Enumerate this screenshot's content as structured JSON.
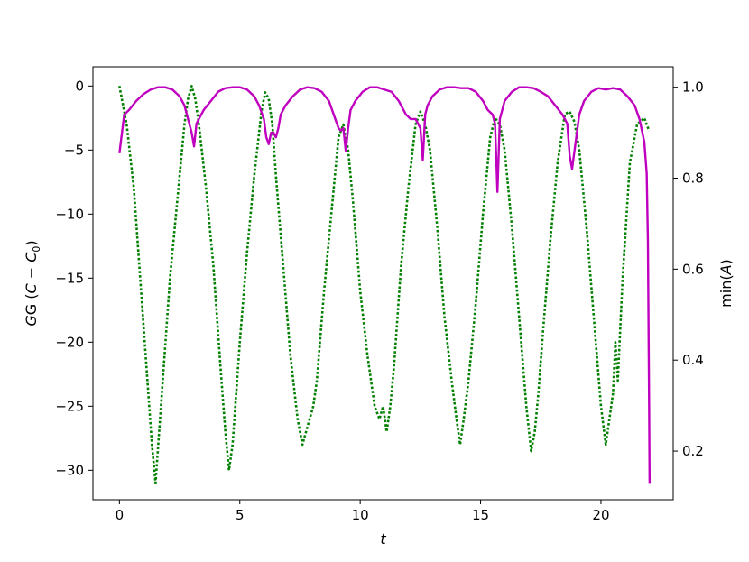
{
  "chart_data": {
    "type": "line",
    "xlabel": "t",
    "ylabel_left": "G (C − C₀)",
    "ylabel_left_parts": {
      "pre": "G (",
      "c1": "C",
      "mid": " − ",
      "c2": "C",
      "sub": "0",
      "post": ")"
    },
    "ylabel_right": "min(A)",
    "ylabel_right_parts": {
      "pre": "min(",
      "var": "A",
      "post": ")"
    },
    "xlim": [
      -1.1,
      23.0
    ],
    "ylim_left": [
      -32.3,
      1.5
    ],
    "ylim_right": [
      0.093,
      1.045
    ],
    "x_ticks": [
      0,
      5,
      10,
      15,
      20
    ],
    "y_ticks_left": [
      0,
      -5,
      -10,
      -15,
      -20,
      -25,
      -30
    ],
    "y_ticks_right": [
      1.0,
      0.8,
      0.6,
      0.4,
      0.2
    ],
    "grid": false,
    "series": [
      {
        "axis": "left",
        "style": "dotted",
        "color": "#008000",
        "x": [
          0,
          0.3,
          0.6,
          0.9,
          1.2,
          1.35,
          1.5,
          1.65,
          1.8,
          2.1,
          2.4,
          2.7,
          2.85,
          3.0,
          3.15,
          3.3,
          3.6,
          3.9,
          4.2,
          4.4,
          4.55,
          4.7,
          4.85,
          5.0,
          5.3,
          5.6,
          5.9,
          6.05,
          6.2,
          6.35,
          6.5,
          6.8,
          7.1,
          7.4,
          7.6,
          7.75,
          7.9,
          8.05,
          8.2,
          8.5,
          8.8,
          9.1,
          9.3,
          9.5,
          9.7,
          10.0,
          10.3,
          10.6,
          10.8,
          10.95,
          11.1,
          11.25,
          11.4,
          11.7,
          12.0,
          12.3,
          12.5,
          12.7,
          12.9,
          13.2,
          13.5,
          13.8,
          14.0,
          14.15,
          14.3,
          14.5,
          14.8,
          15.1,
          15.4,
          15.6,
          15.8,
          16.0,
          16.3,
          16.6,
          16.9,
          17.1,
          17.25,
          17.4,
          17.6,
          17.9,
          18.2,
          18.5,
          18.7,
          18.9,
          19.1,
          19.4,
          19.7,
          20.0,
          20.2,
          20.35,
          20.5,
          20.6,
          20.7,
          20.8,
          20.9,
          21.0,
          21.2,
          21.5,
          21.8,
          22.0
        ],
        "y": [
          0,
          -3,
          -8,
          -16,
          -24,
          -28,
          -31,
          -27,
          -23,
          -15,
          -9,
          -3,
          -1,
          0,
          -1,
          -3,
          -8,
          -14,
          -22,
          -27,
          -30,
          -28,
          -24,
          -20,
          -13,
          -7,
          -2,
          -0.5,
          -1,
          -3,
          -7,
          -14,
          -21,
          -26,
          -28,
          -27,
          -26,
          -25,
          -23,
          -16,
          -10,
          -4,
          -3,
          -5,
          -9,
          -16,
          -21,
          -25,
          -26,
          -25,
          -27,
          -25,
          -22,
          -14,
          -8,
          -3,
          -2,
          -3,
          -5,
          -11,
          -18,
          -23,
          -26,
          -28,
          -26,
          -23,
          -17,
          -10,
          -4,
          -2.5,
          -3,
          -5,
          -11,
          -18,
          -25,
          -28.5,
          -27,
          -24,
          -19,
          -12,
          -6,
          -2.2,
          -2,
          -2.8,
          -5,
          -11,
          -18,
          -25,
          -28,
          -26,
          -24,
          -20,
          -23,
          -19,
          -15,
          -12,
          -6,
          -3,
          -2.5,
          -3.5
        ]
      },
      {
        "axis": "right",
        "style": "solid",
        "color": "#bf00bf",
        "x": [
          0,
          0.2,
          0.4,
          0.7,
          1.0,
          1.3,
          1.6,
          1.9,
          2.2,
          2.5,
          2.7,
          2.85,
          3.0,
          3.1,
          3.2,
          3.3,
          3.5,
          3.8,
          4.1,
          4.4,
          4.7,
          5.0,
          5.3,
          5.6,
          5.8,
          6.0,
          6.1,
          6.2,
          6.3,
          6.4,
          6.5,
          6.6,
          6.7,
          6.9,
          7.2,
          7.5,
          7.8,
          8.1,
          8.4,
          8.7,
          8.9,
          9.1,
          9.2,
          9.3,
          9.4,
          9.5,
          9.6,
          9.8,
          10.1,
          10.4,
          10.7,
          11.0,
          11.3,
          11.6,
          11.9,
          12.1,
          12.3,
          12.5,
          12.6,
          12.7,
          12.8,
          13.0,
          13.3,
          13.6,
          13.9,
          14.2,
          14.5,
          14.8,
          15.1,
          15.3,
          15.5,
          15.6,
          15.7,
          15.8,
          16.0,
          16.3,
          16.6,
          16.9,
          17.2,
          17.5,
          17.8,
          18.1,
          18.4,
          18.6,
          18.7,
          18.8,
          18.9,
          19.0,
          19.1,
          19.3,
          19.6,
          19.9,
          20.2,
          20.5,
          20.8,
          21.1,
          21.4,
          21.6,
          21.8,
          21.9,
          21.95,
          22.0,
          22.02
        ],
        "y": [
          0.855,
          0.94,
          0.95,
          0.97,
          0.985,
          0.995,
          1.0,
          1.0,
          0.995,
          0.98,
          0.96,
          0.93,
          0.9,
          0.87,
          0.92,
          0.93,
          0.95,
          0.97,
          0.99,
          0.998,
          1.0,
          1.0,
          0.995,
          0.98,
          0.96,
          0.93,
          0.89,
          0.875,
          0.9,
          0.9,
          0.89,
          0.91,
          0.94,
          0.96,
          0.98,
          0.995,
          1.0,
          0.998,
          0.99,
          0.97,
          0.94,
          0.91,
          0.905,
          0.91,
          0.86,
          0.91,
          0.95,
          0.97,
          0.99,
          1.0,
          1.0,
          0.995,
          0.99,
          0.97,
          0.94,
          0.93,
          0.93,
          0.91,
          0.84,
          0.94,
          0.96,
          0.98,
          0.995,
          1.0,
          1.0,
          0.998,
          0.998,
          0.99,
          0.97,
          0.95,
          0.94,
          0.92,
          0.77,
          0.93,
          0.97,
          0.99,
          1.0,
          1.0,
          0.998,
          0.99,
          0.98,
          0.96,
          0.94,
          0.92,
          0.85,
          0.82,
          0.86,
          0.9,
          0.94,
          0.97,
          0.99,
          0.998,
          0.995,
          0.998,
          0.995,
          0.98,
          0.96,
          0.93,
          0.88,
          0.81,
          0.66,
          0.3,
          0.13
        ]
      }
    ]
  }
}
